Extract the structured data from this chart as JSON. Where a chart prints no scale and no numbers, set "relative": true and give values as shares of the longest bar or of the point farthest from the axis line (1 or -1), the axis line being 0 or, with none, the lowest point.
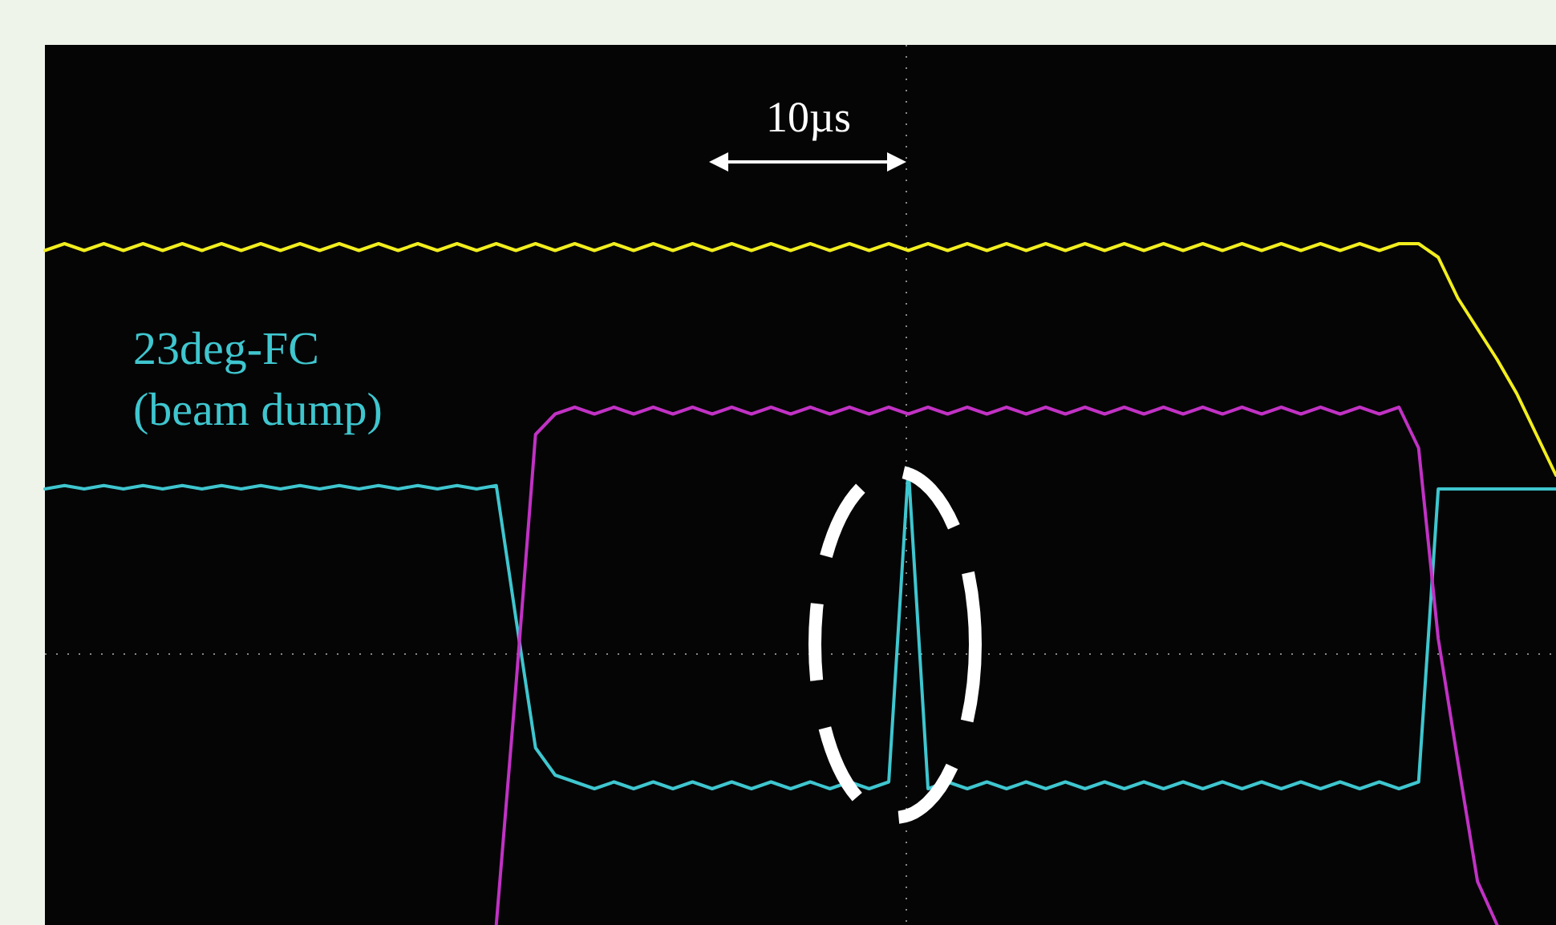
{
  "chart_data": {
    "type": "line",
    "relative": true,
    "legend": false,
    "marker": "none",
    "line_style": "solid",
    "categories": [
      null,
      null,
      null,
      null,
      null,
      null,
      null,
      null,
      null,
      null,
      null,
      null,
      null,
      null,
      null,
      null,
      null,
      null,
      null,
      null,
      null,
      null,
      null,
      null,
      null,
      null,
      null,
      null,
      null,
      null,
      null,
      null,
      null,
      null,
      null,
      null,
      null,
      null,
      null,
      null,
      null,
      null,
      null,
      null,
      null,
      null,
      null,
      null,
      null,
      null,
      null,
      null,
      null,
      null,
      null,
      null,
      null,
      null,
      null,
      null,
      null,
      null,
      null,
      null,
      null,
      null,
      null,
      null,
      null,
      null,
      null,
      null,
      null,
      null,
      null,
      null,
      null,
      null
    ],
    "annotations": [
      "10µs"
    ],
    "series": [
      {
        "color": "#f2ee1e",
        "values": [
          0.99,
          1,
          0.99,
          1,
          0.99,
          1,
          0.99,
          1,
          0.99,
          1,
          0.99,
          1,
          0.99,
          1,
          0.99,
          1,
          0.99,
          1,
          0.99,
          1,
          0.99,
          1,
          0.99,
          1,
          0.99,
          1,
          0.99,
          1,
          0.99,
          1,
          0.99,
          1,
          0.99,
          1,
          0.99,
          1,
          0.99,
          1,
          0.99,
          1,
          0.99,
          1,
          0.99,
          1,
          0.99,
          1,
          0.99,
          1,
          0.99,
          1,
          0.99,
          1,
          0.99,
          1,
          0.99,
          1,
          0.99,
          1,
          0.99,
          1,
          0.99,
          1,
          0.99,
          1,
          0.99,
          1,
          0.99,
          1,
          0.99,
          1,
          1,
          0.98,
          0.92,
          0.875,
          0.83,
          0.78,
          0.72,
          0.66
        ]
      },
      {
        "name": "23deg-FC (beam dump)",
        "color": "#3fc6cf",
        "values": [
          0.64,
          0.645,
          0.64,
          0.645,
          0.64,
          0.645,
          0.64,
          0.645,
          0.64,
          0.645,
          0.64,
          0.645,
          0.64,
          0.645,
          0.64,
          0.645,
          0.64,
          0.645,
          0.64,
          0.645,
          0.64,
          0.645,
          0.64,
          0.645,
          0.45,
          0.26,
          0.22,
          0.21,
          0.2,
          0.21,
          0.2,
          0.21,
          0.2,
          0.21,
          0.2,
          0.21,
          0.2,
          0.21,
          0.2,
          0.21,
          0.2,
          0.21,
          0.2,
          0.21,
          0.67,
          0.2,
          0.21,
          0.2,
          0.21,
          0.2,
          0.21,
          0.2,
          0.21,
          0.2,
          0.21,
          0.2,
          0.21,
          0.2,
          0.21,
          0.2,
          0.21,
          0.2,
          0.21,
          0.2,
          0.21,
          0.2,
          0.21,
          0.2,
          0.21,
          0.2,
          0.21,
          0.64,
          0.64,
          0.64,
          0.64,
          0.64,
          0.64,
          0.64
        ]
      },
      {
        "color": "#c132c4",
        "values": [
          null,
          null,
          null,
          null,
          null,
          null,
          null,
          null,
          null,
          null,
          null,
          null,
          null,
          null,
          null,
          null,
          null,
          null,
          null,
          null,
          null,
          null,
          null,
          0,
          0.35,
          0.72,
          0.75,
          0.76,
          0.75,
          0.76,
          0.75,
          0.76,
          0.75,
          0.76,
          0.75,
          0.76,
          0.75,
          0.76,
          0.75,
          0.76,
          0.75,
          0.76,
          0.75,
          0.76,
          0.75,
          0.76,
          0.75,
          0.76,
          0.75,
          0.76,
          0.75,
          0.76,
          0.75,
          0.76,
          0.75,
          0.76,
          0.75,
          0.76,
          0.75,
          0.76,
          0.75,
          0.76,
          0.75,
          0.76,
          0.75,
          0.76,
          0.75,
          0.76,
          0.75,
          0.76,
          0.7,
          0.42,
          0.24,
          0.064,
          0,
          null,
          null,
          null
        ]
      }
    ]
  }
}
